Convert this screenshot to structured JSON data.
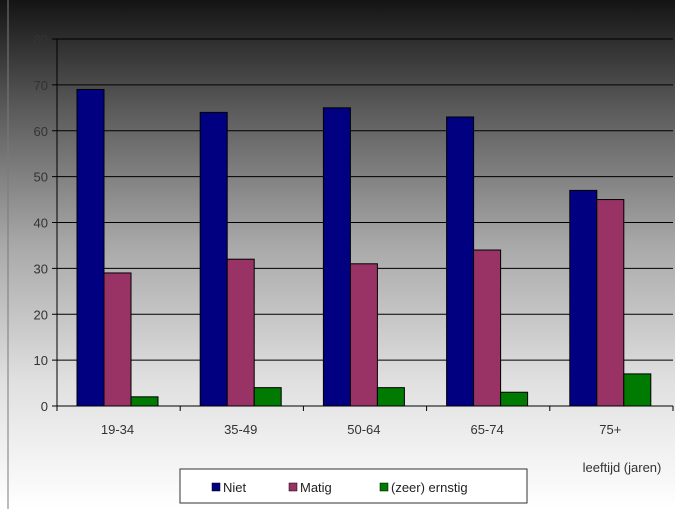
{
  "chart_data": {
    "type": "bar",
    "categories": [
      "19-34",
      "35-49",
      "50-64",
      "65-74",
      "75+"
    ],
    "series": [
      {
        "name": "Niet",
        "values": [
          69,
          64,
          65,
          63,
          47
        ],
        "color": "#000080"
      },
      {
        "name": "Matig",
        "values": [
          29,
          32,
          31,
          34,
          45
        ],
        "color": "#993366"
      },
      {
        "name": "(zeer) ernstig",
        "values": [
          2,
          4,
          4,
          3,
          7
        ],
        "color": "#007A00"
      }
    ],
    "title": "",
    "xlabel": "leeftijd  (jaren)",
    "ylabel": "",
    "ylim": [
      0,
      80
    ],
    "yticks": [
      0,
      10,
      20,
      30,
      40,
      50,
      60,
      70,
      80
    ],
    "grid": true,
    "legend_position": "bottom",
    "plot_background": "gradient dark-to-white"
  }
}
